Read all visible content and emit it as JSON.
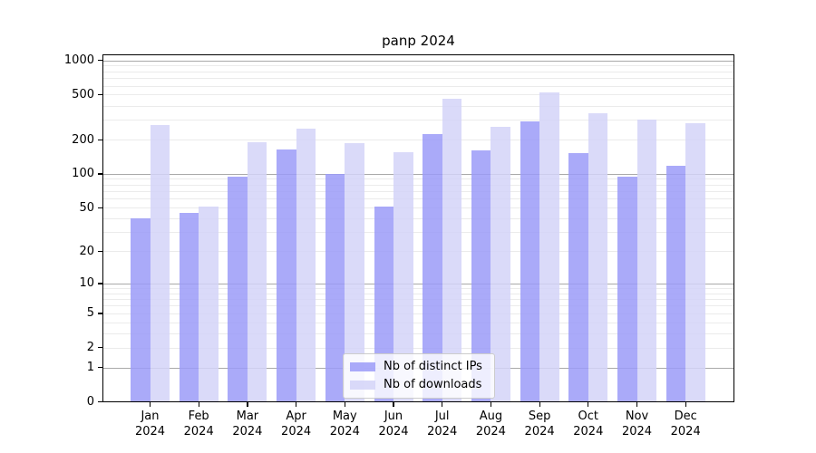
{
  "chart_data": {
    "type": "bar",
    "title": "panp 2024",
    "categories": [
      "Jan 2024",
      "Feb 2024",
      "Mar 2024",
      "Apr 2024",
      "May 2024",
      "Jun 2024",
      "Jul 2024",
      "Aug 2024",
      "Sep 2024",
      "Oct 2024",
      "Nov 2024",
      "Dec 2024"
    ],
    "series": [
      {
        "name": "Nb of distinct IPs",
        "color": "#9b9bf8",
        "alpha": 0.85,
        "values": [
          40,
          45,
          95,
          163,
          100,
          51,
          225,
          162,
          290,
          152,
          94,
          118
        ]
      },
      {
        "name": "Nb of downloads",
        "color": "#d4d4f8",
        "alpha": 0.85,
        "values": [
          270,
          51,
          190,
          250,
          188,
          155,
          460,
          260,
          525,
          343,
          300,
          280
        ]
      }
    ],
    "yscale": "log1p",
    "yticks": [
      0,
      1,
      2,
      5,
      10,
      20,
      50,
      100,
      200,
      500,
      1000
    ],
    "major_gridlines": [
      1,
      10,
      100,
      1000
    ],
    "ylim": [
      0,
      1000
    ],
    "grid": true,
    "legend_position": "lower center",
    "xlabel": "",
    "ylabel": ""
  },
  "colors": {
    "bar_distinct_ips": "#9b9bf8",
    "bar_downloads": "#d4d4f8",
    "grid_minor": "#ebebeb",
    "grid_major": "#a9a9a9",
    "axis": "#000000",
    "background": "#ffffff"
  }
}
